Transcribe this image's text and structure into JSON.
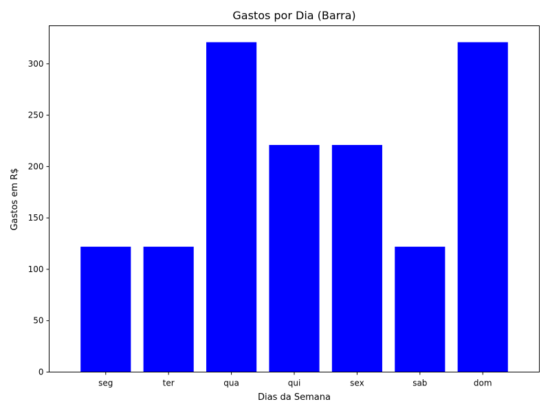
{
  "chart_data": {
    "type": "bar",
    "title": "Gastos por Dia (Barra)",
    "xlabel": "Dias da Semana",
    "ylabel": "Gastos em R$",
    "categories": [
      "seg",
      "ter",
      "qua",
      "qui",
      "sex",
      "sab",
      "dom"
    ],
    "values": [
      122,
      122,
      321,
      221,
      221,
      122,
      321
    ],
    "ylim": [
      0,
      337
    ],
    "yticks": [
      0,
      50,
      100,
      150,
      200,
      250,
      300
    ],
    "grid": false,
    "legend": null,
    "colors": {
      "bar": "#0000ff",
      "axes": "#000000",
      "background": "#ffffff"
    }
  }
}
